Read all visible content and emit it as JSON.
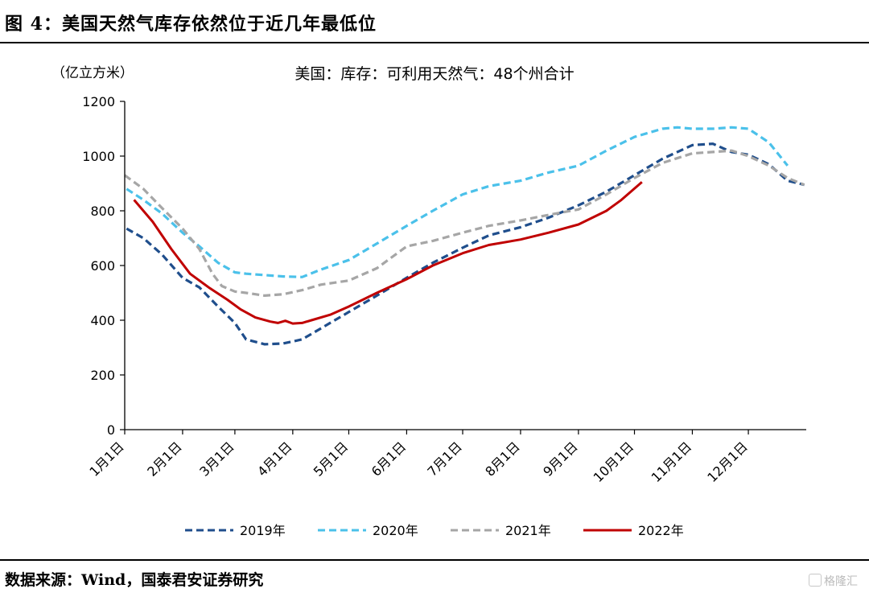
{
  "figure": {
    "title": "图 4：美国天然气库存依然位于近几年最低位",
    "source": "数据来源：Wind，国泰君安证券研究",
    "watermark": "格隆汇"
  },
  "chart_data": {
    "type": "line",
    "title": "美国：库存：可利用天然气：48个州合计",
    "unit_label": "（亿立方米）",
    "xlabel": "",
    "ylabel": "",
    "ylim": [
      0,
      1200
    ],
    "yticks": [
      0,
      200,
      400,
      600,
      800,
      1000,
      1200
    ],
    "xlim_days": [
      0,
      365
    ],
    "grid": false,
    "legend_position": "bottom",
    "x_axis_labels": [
      {
        "label": "1月1日",
        "day": 0
      },
      {
        "label": "2月1日",
        "day": 31
      },
      {
        "label": "3月1日",
        "day": 59
      },
      {
        "label": "4月1日",
        "day": 90
      },
      {
        "label": "5月1日",
        "day": 120
      },
      {
        "label": "6月1日",
        "day": 151
      },
      {
        "label": "7月1日",
        "day": 181
      },
      {
        "label": "8月1日",
        "day": 212
      },
      {
        "label": "9月1日",
        "day": 243
      },
      {
        "label": "10月1日",
        "day": 273
      },
      {
        "label": "11月1日",
        "day": 304
      },
      {
        "label": "12月1日",
        "day": 334
      }
    ],
    "series": [
      {
        "name": "2019年",
        "color": "#1f4e8c",
        "dash": "dashed",
        "x": [
          1,
          10,
          20,
          31,
          40,
          50,
          59,
          65,
          75,
          85,
          95,
          105,
          120,
          135,
          151,
          165,
          181,
          195,
          212,
          227,
          243,
          258,
          273,
          288,
          304,
          315,
          325,
          334,
          345,
          355,
          364
        ],
        "y": [
          735,
          700,
          640,
          555,
          520,
          450,
          390,
          330,
          312,
          315,
          330,
          370,
          430,
          490,
          555,
          610,
          665,
          710,
          740,
          775,
          820,
          870,
          930,
          990,
          1040,
          1045,
          1015,
          1005,
          970,
          910,
          895
        ]
      },
      {
        "name": "2020年",
        "color": "#4bc1ea",
        "dash": "dashed",
        "x": [
          1,
          10,
          20,
          31,
          40,
          50,
          59,
          65,
          75,
          85,
          95,
          105,
          120,
          135,
          151,
          165,
          181,
          195,
          212,
          227,
          243,
          258,
          273,
          288,
          296,
          304,
          315,
          325,
          334,
          345,
          355
        ],
        "y": [
          880,
          840,
          790,
          720,
          670,
          610,
          575,
          570,
          565,
          560,
          558,
          585,
          620,
          680,
          745,
          800,
          860,
          890,
          910,
          940,
          965,
          1020,
          1070,
          1100,
          1105,
          1100,
          1100,
          1105,
          1100,
          1050,
          965
        ]
      },
      {
        "name": "2021年",
        "color": "#a6a6a6",
        "dash": "dashed",
        "x": [
          0,
          10,
          20,
          31,
          40,
          47,
          52,
          59,
          65,
          75,
          85,
          95,
          105,
          120,
          135,
          151,
          165,
          181,
          195,
          212,
          227,
          243,
          258,
          273,
          288,
          304,
          315,
          325,
          334,
          345,
          355,
          364
        ],
        "y": [
          930,
          880,
          810,
          735,
          660,
          570,
          525,
          505,
          500,
          490,
          495,
          510,
          530,
          545,
          590,
          670,
          690,
          720,
          745,
          765,
          785,
          805,
          860,
          920,
          975,
          1010,
          1015,
          1020,
          1000,
          965,
          920,
          895
        ]
      },
      {
        "name": "2022年",
        "color": "#c00000",
        "dash": "solid",
        "x": [
          5,
          15,
          25,
          35,
          45,
          55,
          62,
          70,
          78,
          82,
          86,
          90,
          95,
          100,
          110,
          120,
          135,
          151,
          165,
          181,
          195,
          212,
          227,
          243,
          258,
          266,
          277
        ],
        "y": [
          840,
          760,
          660,
          570,
          520,
          475,
          440,
          410,
          395,
          390,
          398,
          388,
          390,
          400,
          420,
          450,
          500,
          550,
          600,
          645,
          675,
          695,
          720,
          750,
          800,
          840,
          905
        ]
      }
    ]
  }
}
